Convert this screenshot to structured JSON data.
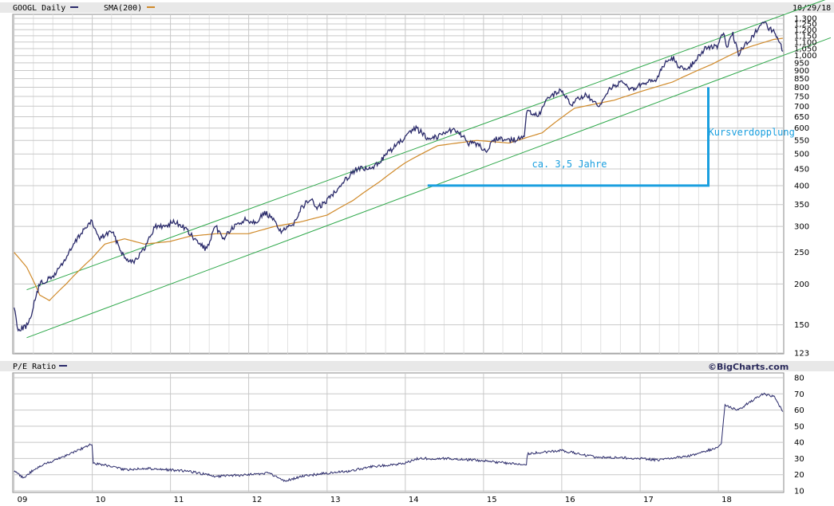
{
  "header": {
    "symbol_label": "GOOGL Daily",
    "sma_label": "SMA(200)",
    "date_label": "10/29/18",
    "pe_label": "P/E Ratio",
    "brand": "©BigCharts.com"
  },
  "colors": {
    "price": "#2a2a6a",
    "sma": "#d08a2a",
    "channel": "#2ea84a",
    "annotation": "#1a9fdf",
    "grid": "#c8c8c8",
    "header_bg": "#e8e8e8"
  },
  "chart_data": [
    {
      "type": "line",
      "title": "GOOGL Daily",
      "y_scale": "log",
      "ylim": [
        123,
        1300
      ],
      "yticks": [
        "1,300",
        "1,250",
        "1,200",
        "1,150",
        "1,100",
        "1,050",
        "1,000",
        "950",
        "900",
        "850",
        "800",
        "750",
        "700",
        "650",
        "600",
        "550",
        "500",
        "450",
        "400",
        "350",
        "300",
        "250",
        "200",
        "150",
        "123"
      ],
      "xticks": [
        "09",
        "10",
        "11",
        "12",
        "13",
        "14",
        "15",
        "16",
        "17",
        "18"
      ],
      "series": [
        {
          "name": "GOOGL Daily",
          "points": [
            [
              "2009-01-01",
              170
            ],
            [
              "2009-01-20",
              145
            ],
            [
              "2009-03-10",
              150
            ],
            [
              "2009-05-01",
              200
            ],
            [
              "2009-07-01",
              210
            ],
            [
              "2009-09-01",
              240
            ],
            [
              "2009-11-15",
              290
            ],
            [
              "2009-12-31",
              310
            ],
            [
              "2010-02-01",
              275
            ],
            [
              "2010-04-01",
              290
            ],
            [
              "2010-06-01",
              240
            ],
            [
              "2010-07-15",
              235
            ],
            [
              "2010-09-01",
              255
            ],
            [
              "2010-10-20",
              300
            ],
            [
              "2010-12-01",
              300
            ],
            [
              "2011-01-15",
              310
            ],
            [
              "2011-03-01",
              300
            ],
            [
              "2011-05-01",
              270
            ],
            [
              "2011-06-20",
              255
            ],
            [
              "2011-08-01",
              300
            ],
            [
              "2011-09-01",
              275
            ],
            [
              "2011-10-15",
              295
            ],
            [
              "2011-12-15",
              315
            ],
            [
              "2012-02-01",
              310
            ],
            [
              "2012-03-20",
              330
            ],
            [
              "2012-05-01",
              310
            ],
            [
              "2012-06-01",
              290
            ],
            [
              "2012-07-20",
              300
            ],
            [
              "2012-09-01",
              340
            ],
            [
              "2012-10-15",
              365
            ],
            [
              "2012-11-15",
              340
            ],
            [
              "2013-01-01",
              360
            ],
            [
              "2013-03-01",
              400
            ],
            [
              "2013-05-15",
              450
            ],
            [
              "2013-08-01",
              450
            ],
            [
              "2013-10-20",
              510
            ],
            [
              "2014-01-01",
              560
            ],
            [
              "2014-02-20",
              600
            ],
            [
              "2014-04-15",
              560
            ],
            [
              "2014-06-01",
              565
            ],
            [
              "2014-07-15",
              590
            ],
            [
              "2014-09-01",
              590
            ],
            [
              "2014-10-20",
              540
            ],
            [
              "2014-12-15",
              530
            ],
            [
              "2015-01-15",
              510
            ],
            [
              "2015-03-01",
              560
            ],
            [
              "2015-05-15",
              550
            ],
            [
              "2015-07-10",
              560
            ],
            [
              "2015-07-20",
              675
            ],
            [
              "2015-09-15",
              650
            ],
            [
              "2015-11-01",
              750
            ],
            [
              "2015-12-31",
              780
            ],
            [
              "2016-02-15",
              710
            ],
            [
              "2016-04-20",
              760
            ],
            [
              "2016-06-25",
              690
            ],
            [
              "2016-08-15",
              800
            ],
            [
              "2016-10-20",
              830
            ],
            [
              "2016-11-15",
              780
            ],
            [
              "2017-01-01",
              810
            ],
            [
              "2017-03-15",
              840
            ],
            [
              "2017-05-01",
              960
            ],
            [
              "2017-06-10",
              980
            ],
            [
              "2017-07-05",
              910
            ],
            [
              "2017-08-25",
              930
            ],
            [
              "2017-10-30",
              1050
            ],
            [
              "2017-12-31",
              1070
            ],
            [
              "2018-01-25",
              1180
            ],
            [
              "2018-02-10",
              1060
            ],
            [
              "2018-03-10",
              1160
            ],
            [
              "2018-04-05",
              1010
            ],
            [
              "2018-05-15",
              1100
            ],
            [
              "2018-06-15",
              1150
            ],
            [
              "2018-07-27",
              1280
            ],
            [
              "2018-08-20",
              1220
            ],
            [
              "2018-09-20",
              1180
            ],
            [
              "2018-10-29",
              1030
            ]
          ]
        },
        {
          "name": "SMA(200)",
          "points": [
            [
              "2009-01-01",
              250
            ],
            [
              "2009-03-01",
              225
            ],
            [
              "2009-05-01",
              185
            ],
            [
              "2009-06-15",
              178
            ],
            [
              "2009-09-01",
              200
            ],
            [
              "2009-12-31",
              240
            ],
            [
              "2010-03-01",
              265
            ],
            [
              "2010-06-01",
              275
            ],
            [
              "2010-09-01",
              265
            ],
            [
              "2010-12-31",
              270
            ],
            [
              "2011-04-01",
              280
            ],
            [
              "2011-08-01",
              285
            ],
            [
              "2011-12-31",
              285
            ],
            [
              "2012-05-01",
              300
            ],
            [
              "2012-09-01",
              310
            ],
            [
              "2013-01-01",
              325
            ],
            [
              "2013-05-01",
              360
            ],
            [
              "2013-09-01",
              410
            ],
            [
              "2014-01-01",
              470
            ],
            [
              "2014-06-01",
              530
            ],
            [
              "2014-12-01",
              550
            ],
            [
              "2015-05-01",
              540
            ],
            [
              "2015-10-01",
              580
            ],
            [
              "2016-03-01",
              690
            ],
            [
              "2016-09-01",
              730
            ],
            [
              "2017-01-01",
              775
            ],
            [
              "2017-06-01",
              830
            ],
            [
              "2017-12-01",
              940
            ],
            [
              "2018-05-01",
              1050
            ],
            [
              "2018-09-15",
              1120
            ],
            [
              "2018-10-29",
              1130
            ]
          ]
        }
      ],
      "annotations": [
        {
          "text": "Kursverdopplung",
          "x": "2017-11-15",
          "y": 570
        },
        {
          "text": "ca. 3,5 Jahre",
          "x": "2015-08-15",
          "y": 455
        }
      ],
      "channel": {
        "upper": [
          [
            "2009-03-01",
            192
          ],
          [
            "2018-10-29",
            1330
          ]
        ],
        "lower": [
          [
            "2009-03-01",
            137
          ],
          [
            "2018-10-29",
            1000
          ]
        ]
      },
      "doubling_marker": {
        "start": [
          "2014-04-15",
          400
        ],
        "corner": [
          "2017-11-15",
          400
        ],
        "end": [
          "2017-11-15",
          800
        ]
      }
    },
    {
      "type": "line",
      "title": "P/E Ratio",
      "ylim": [
        10,
        80
      ],
      "yticks": [
        "80",
        "70",
        "60",
        "50",
        "40",
        "30",
        "20",
        "10"
      ],
      "series": [
        {
          "name": "P/E Ratio",
          "points": [
            [
              "2009-01-01",
              22
            ],
            [
              "2009-02-15",
              18
            ],
            [
              "2009-04-01",
              23
            ],
            [
              "2009-06-01",
              27
            ],
            [
              "2009-09-01",
              32
            ],
            [
              "2009-12-31",
              39
            ],
            [
              "2010-01-06",
              27
            ],
            [
              "2010-03-01",
              26
            ],
            [
              "2010-06-01",
              23
            ],
            [
              "2010-09-01",
              24
            ],
            [
              "2010-12-31",
              23
            ],
            [
              "2011-04-01",
              22
            ],
            [
              "2011-08-01",
              19
            ],
            [
              "2011-12-31",
              20
            ],
            [
              "2012-04-01",
              21
            ],
            [
              "2012-06-20",
              16
            ],
            [
              "2012-09-01",
              19
            ],
            [
              "2012-12-31",
              21
            ],
            [
              "2013-04-01",
              22
            ],
            [
              "2013-08-01",
              25
            ],
            [
              "2013-12-31",
              27
            ],
            [
              "2014-03-01",
              30
            ],
            [
              "2014-07-01",
              30
            ],
            [
              "2014-12-01",
              29
            ],
            [
              "2015-05-01",
              27
            ],
            [
              "2015-07-20",
              26
            ],
            [
              "2015-07-25",
              33
            ],
            [
              "2015-12-31",
              35
            ],
            [
              "2016-06-01",
              31
            ],
            [
              "2016-12-31",
              30
            ],
            [
              "2017-04-01",
              29
            ],
            [
              "2017-09-01",
              32
            ],
            [
              "2017-12-31",
              37
            ],
            [
              "2018-01-15",
              40
            ],
            [
              "2018-02-01",
              63
            ],
            [
              "2018-04-01",
              60
            ],
            [
              "2018-07-27",
              70
            ],
            [
              "2018-09-20",
              68
            ],
            [
              "2018-10-29",
              59
            ]
          ]
        }
      ],
      "xticks": [
        "09",
        "10",
        "11",
        "12",
        "13",
        "14",
        "15",
        "16",
        "17",
        "18"
      ]
    }
  ]
}
